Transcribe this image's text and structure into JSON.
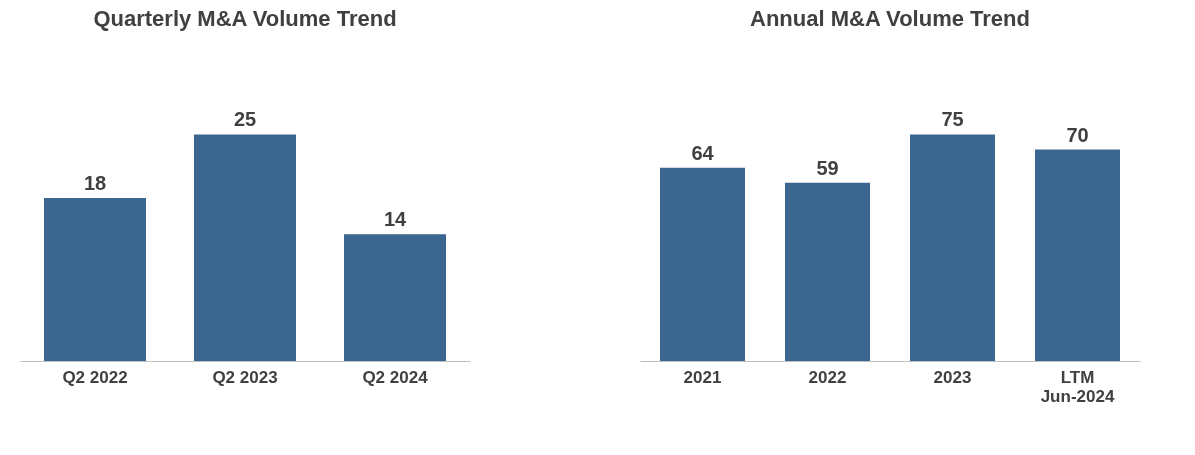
{
  "chart_data": [
    {
      "type": "bar",
      "title": "Quarterly M&A Volume Trend",
      "categories": [
        "Q2 2022",
        "Q2 2023",
        "Q2 2024"
      ],
      "series": [
        {
          "color": "#3b668f",
          "values": [
            18,
            25,
            14
          ]
        }
      ],
      "data_labels": true
    },
    {
      "type": "bar",
      "title": "Annual M&A Volume Trend",
      "categories": [
        "2021",
        "2022",
        "2023",
        "LTM\nJun-2024"
      ],
      "series": [
        {
          "color": "#3b668f",
          "values": [
            64,
            59,
            75,
            70
          ]
        }
      ],
      "data_labels": true
    }
  ]
}
